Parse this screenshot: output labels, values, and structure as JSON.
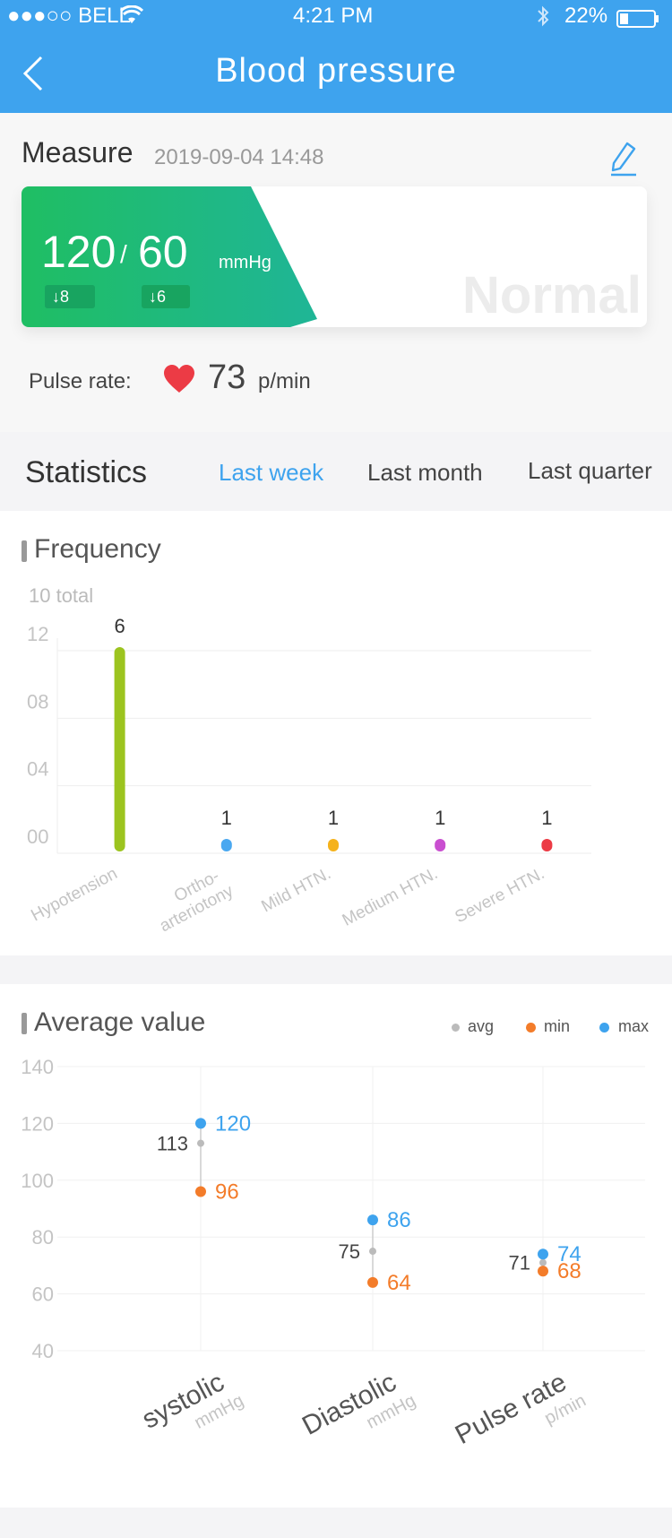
{
  "status_bar": {
    "carrier": "●●●○○ BELL",
    "time": "4:21 PM",
    "battery": "22%"
  },
  "header": {
    "title": "Blood pressure",
    "back_icon": "chevron-left-icon"
  },
  "measure": {
    "label": "Measure",
    "datetime": "2019-09-04 14:48",
    "systolic": "120",
    "diastolic": "60",
    "unit": "mmHg",
    "systolic_change": "↓8",
    "diastolic_change": "↓6",
    "status": "Normal",
    "status_color": "#1fbe63"
  },
  "pulse": {
    "label": "Pulse rate:",
    "value": "73",
    "unit": "p/min"
  },
  "statistics": {
    "title": "Statistics",
    "tabs": [
      "Last week",
      "Last month",
      "Last quarter"
    ],
    "active_tab": "Last week",
    "accent": "#3ea3ee"
  },
  "frequency": {
    "title": "Frequency",
    "total": "10 total",
    "chart_data": {
      "type": "bar",
      "categories": [
        "Hypotension",
        "Ortho-\narteriotony",
        "Mild HTN.",
        "Medium HTN.",
        "Severe HTN."
      ],
      "values": [
        6,
        1,
        1,
        1,
        1
      ],
      "y_ticks": [
        "00",
        "04",
        "08",
        "12"
      ],
      "ylim": [
        0,
        12
      ],
      "colors": [
        "#9cc41f",
        "#4aa8f0",
        "#f5b21b",
        "#c94fd0",
        "#ec3b45"
      ],
      "grid": true
    }
  },
  "average": {
    "title": "Average value",
    "legend": [
      "avg",
      "min",
      "max"
    ],
    "legend_colors": {
      "avg": "#bbbbbb",
      "min": "#f37c2a",
      "max": "#3ea3ee"
    },
    "chart_data": {
      "type": "scatter",
      "categories": [
        "systolic",
        "Diastolic",
        "Pulse rate"
      ],
      "category_units": [
        "mmHg",
        "mmHg",
        "p/min"
      ],
      "ylim": [
        40,
        140
      ],
      "y_ticks": [
        "40",
        "60",
        "80",
        "100",
        "120",
        "140"
      ],
      "series": [
        {
          "name": "avg",
          "values": [
            113,
            75,
            71
          ]
        },
        {
          "name": "min",
          "values": [
            96,
            64,
            68
          ]
        },
        {
          "name": "max",
          "values": [
            120,
            86,
            74
          ]
        }
      ],
      "grid": true
    }
  }
}
